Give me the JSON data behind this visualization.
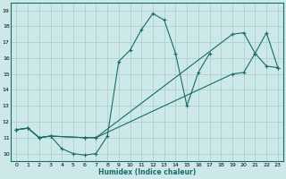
{
  "title": "",
  "xlabel": "Humidex (Indice chaleur)",
  "xlim": [
    -0.5,
    23.5
  ],
  "ylim": [
    9.5,
    19.5
  ],
  "xticks": [
    0,
    1,
    2,
    3,
    4,
    5,
    6,
    7,
    8,
    9,
    10,
    11,
    12,
    13,
    14,
    15,
    16,
    17,
    18,
    19,
    20,
    21,
    22,
    23
  ],
  "yticks": [
    10,
    11,
    12,
    13,
    14,
    15,
    16,
    17,
    18,
    19
  ],
  "bg_color": "#cce8e8",
  "grid_color": "#aacccc",
  "line_color": "#1a6b6b",
  "lines": [
    {
      "x": [
        0,
        1,
        2,
        3,
        4,
        5,
        6,
        7,
        8,
        9,
        10,
        11,
        12,
        13,
        14,
        15,
        16,
        17
      ],
      "y": [
        11.5,
        11.6,
        11.0,
        11.1,
        10.3,
        10.0,
        9.9,
        10.0,
        11.1,
        15.8,
        16.5,
        17.8,
        18.8,
        18.4,
        16.3,
        13.0,
        15.1,
        16.3
      ]
    },
    {
      "x": [
        0,
        1,
        2,
        3,
        6,
        7,
        19,
        20,
        21,
        22,
        23
      ],
      "y": [
        11.5,
        11.6,
        11.0,
        11.1,
        11.0,
        11.0,
        17.5,
        17.6,
        16.3,
        17.6,
        15.4
      ]
    },
    {
      "x": [
        0,
        1,
        2,
        3,
        6,
        7,
        19,
        20,
        21,
        22,
        23
      ],
      "y": [
        11.5,
        11.6,
        11.0,
        11.1,
        11.0,
        11.0,
        15.0,
        15.1,
        16.3,
        15.5,
        15.4
      ]
    }
  ]
}
